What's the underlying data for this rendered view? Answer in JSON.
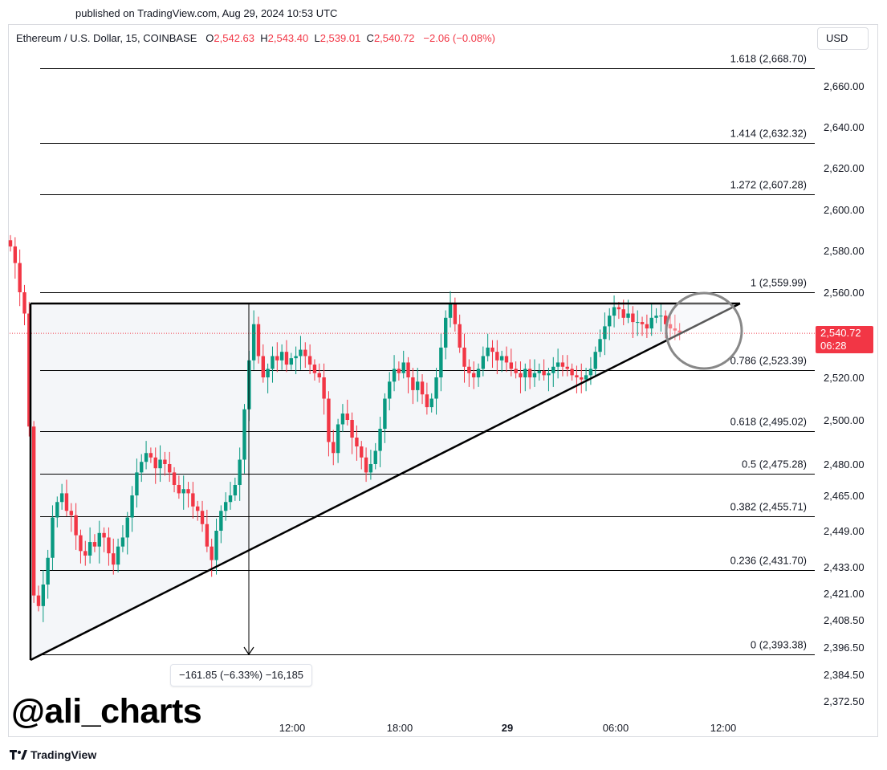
{
  "header": {
    "published": "published on TradingView.com, Aug 29, 2024 10:53 UTC"
  },
  "legend": {
    "symbol": "Ethereum / U.S. Dollar, 15, COINBASE",
    "o_label": "O",
    "o_value": "2,542.63",
    "h_label": "H",
    "h_value": "2,543.40",
    "l_label": "L",
    "l_value": "2,539.01",
    "c_label": "C",
    "c_value": "2,540.72",
    "change": "−2.06 (−0.08%)"
  },
  "currency_button": "USD",
  "last_price": {
    "value": "2,540.72",
    "countdown": "06:28"
  },
  "measure_label": "−161.85 (−6.33%) −16,185",
  "watermark": "@ali_charts",
  "brand": "TradingView",
  "colors": {
    "up": "#089981",
    "down": "#f23645",
    "line": "#000000",
    "text": "#131722"
  },
  "chart_data": {
    "type": "candlestick",
    "symbol": "ETHUSD",
    "interval": "15",
    "y_ticks": [
      "2,660.00",
      "2,640.00",
      "2,620.00",
      "2,600.00",
      "2,580.00",
      "2,560.00",
      "2,520.00",
      "2,500.00",
      "2,480.00",
      "2,465.00",
      "2,449.00",
      "2,433.00",
      "2,421.00",
      "2,408.50",
      "2,396.50",
      "2,384.50",
      "2,372.50"
    ],
    "x_ticks": [
      "12:00",
      "18:00",
      "29",
      "06:00",
      "12:00"
    ],
    "fib_levels": [
      {
        "label": "1.618 (2,668.70)",
        "price": 2668.7
      },
      {
        "label": "1.414 (2,632.32)",
        "price": 2632.32
      },
      {
        "label": "1.272 (2,607.28)",
        "price": 2607.28
      },
      {
        "label": "1 (2,559.99)",
        "price": 2559.99
      },
      {
        "label": "0.786 (2,523.39)",
        "price": 2523.39
      },
      {
        "label": "0.618 (2,495.02)",
        "price": 2495.02
      },
      {
        "label": "0.5 (2,475.28)",
        "price": 2475.28
      },
      {
        "label": "0.382 (2,455.71)",
        "price": 2455.71
      },
      {
        "label": "0.236 (2,431.70)",
        "price": 2431.7
      },
      {
        "label": "0 (2,393.38)",
        "price": 2393.38
      }
    ],
    "candle_path": [
      2585,
      2582,
      2574,
      2560,
      2550,
      2497,
      2420,
      2415,
      2425,
      2437,
      2455,
      2462,
      2466,
      2458,
      2456,
      2447,
      2440,
      2438,
      2444,
      2442,
      2448,
      2446,
      2439,
      2434,
      2442,
      2446,
      2455,
      2465,
      2476,
      2481,
      2485,
      2483,
      2478,
      2482,
      2480,
      2476,
      2470,
      2466,
      2468,
      2466,
      2460,
      2458,
      2452,
      2442,
      2436,
      2449,
      2458,
      2462,
      2465,
      2470,
      2482,
      2505,
      2528,
      2545,
      2530,
      2520,
      2524,
      2530,
      2528,
      2532,
      2526,
      2529,
      2530,
      2533,
      2530,
      2526,
      2522,
      2520,
      2510,
      2490,
      2485,
      2498,
      2503,
      2500,
      2492,
      2488,
      2483,
      2476,
      2480,
      2486,
      2496,
      2510,
      2518,
      2524,
      2522,
      2527,
      2520,
      2514,
      2518,
      2512,
      2506,
      2510,
      2520,
      2534,
      2548,
      2555,
      2545,
      2534,
      2525,
      2522,
      2520,
      2524,
      2530,
      2534,
      2532,
      2528,
      2530,
      2527,
      2524,
      2522,
      2520,
      2524,
      2520,
      2522,
      2523,
      2521,
      2522,
      2525,
      2527,
      2525,
      2524,
      2521,
      2520,
      2519,
      2521,
      2524,
      2532,
      2538,
      2544,
      2549,
      2553,
      2552,
      2548,
      2550,
      2546,
      2546,
      2545,
      2543,
      2548,
      2549,
      2549,
      2545,
      2543,
      2542,
      2541
    ]
  }
}
